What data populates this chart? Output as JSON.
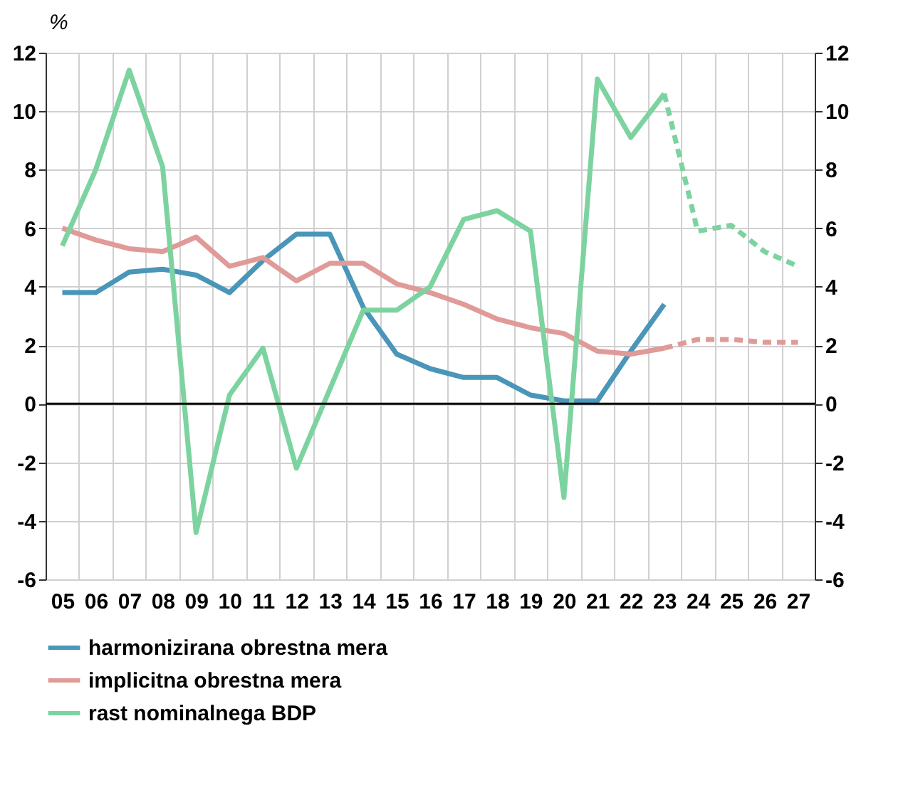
{
  "chart_data": {
    "type": "line",
    "ylabel": "%",
    "categories": [
      "05",
      "06",
      "07",
      "08",
      "09",
      "10",
      "11",
      "12",
      "13",
      "14",
      "15",
      "16",
      "17",
      "18",
      "19",
      "20",
      "21",
      "22",
      "23",
      "24",
      "25",
      "26",
      "27"
    ],
    "series": [
      {
        "name": "harmonizirana obrestna mera",
        "color": "#4a96b8",
        "line_style": "solid",
        "values": [
          3.8,
          3.8,
          4.5,
          4.6,
          4.4,
          3.8,
          4.9,
          5.8,
          5.8,
          3.3,
          1.7,
          1.2,
          0.9,
          0.9,
          0.3,
          0.1,
          0.1,
          1.8,
          3.4,
          null,
          null,
          null,
          null
        ]
      },
      {
        "name": "implicitna obrestna mera",
        "color": "#e09a98",
        "line_style": "solid",
        "values": [
          6.0,
          5.6,
          5.3,
          5.2,
          5.7,
          4.7,
          5.0,
          4.2,
          4.8,
          4.8,
          4.1,
          3.8,
          3.4,
          2.9,
          2.6,
          2.4,
          1.8,
          1.7,
          1.9,
          null,
          null,
          null,
          null
        ]
      },
      {
        "name": "rast nominalnega BDP",
        "color": "#7dd3a0",
        "line_style": "solid",
        "values": [
          5.4,
          8.0,
          11.4,
          8.1,
          -4.4,
          0.3,
          1.9,
          -2.2,
          0.5,
          3.2,
          3.2,
          4.0,
          6.3,
          6.6,
          5.9,
          -3.2,
          11.1,
          9.1,
          10.6,
          null,
          null,
          null,
          null
        ]
      },
      {
        "color": "#e09a98",
        "line_style": "dashed",
        "values": [
          null,
          null,
          null,
          null,
          null,
          null,
          null,
          null,
          null,
          null,
          null,
          null,
          null,
          null,
          null,
          null,
          null,
          null,
          1.9,
          2.2,
          2.2,
          2.1,
          2.1
        ]
      },
      {
        "color": "#7dd3a0",
        "line_style": "dashed",
        "values": [
          null,
          null,
          null,
          null,
          null,
          null,
          null,
          null,
          null,
          null,
          null,
          null,
          null,
          null,
          null,
          null,
          null,
          null,
          10.6,
          5.9,
          6.1,
          5.2,
          4.7
        ]
      }
    ],
    "ylim": [
      -6,
      12
    ],
    "yticks": [
      -6,
      -4,
      -2,
      0,
      2,
      4,
      6,
      8,
      10,
      12
    ],
    "y2lim": [
      -6,
      12
    ],
    "y2ticks": [
      -6,
      -4,
      -2,
      0,
      2,
      4,
      6,
      8,
      10,
      12
    ],
    "ref_lines": [
      {
        "axis": "y",
        "value": 0,
        "color": "#000000"
      }
    ],
    "grid": true,
    "legend": "bottom",
    "marker": "none"
  }
}
